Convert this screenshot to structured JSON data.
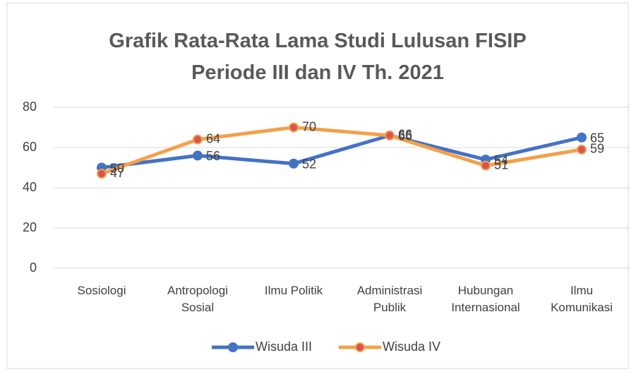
{
  "chart_data": {
    "type": "line",
    "title": "Grafik Rata-Rata Lama Studi Lulusan FISIP Periode III dan IV Th. 2021",
    "categories": [
      "Sosiologi",
      "Antropologi Sosial",
      "Ilmu Politik",
      "Administrasi Publik",
      "Hubungan Internasional",
      "Ilmu Komunikasi"
    ],
    "series": [
      {
        "name": "Wisuda III",
        "color": "#4472c4",
        "marker_color": "#4472c4",
        "values": [
          50,
          56,
          52,
          66,
          54,
          65
        ]
      },
      {
        "name": "Wisuda IV",
        "color": "#f4a04a",
        "marker_color": "#d9534f",
        "values": [
          47,
          64,
          70,
          66,
          51,
          59
        ]
      }
    ],
    "ylim": [
      0,
      80
    ],
    "yticks": [
      0,
      20,
      40,
      60,
      80
    ],
    "grid": true,
    "legend": "bottom"
  }
}
